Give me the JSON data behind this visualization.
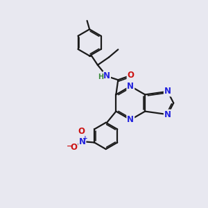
{
  "bg_color": "#e8e8f0",
  "bond_color": "#1a1a1a",
  "bond_width": 1.6,
  "atom_colors": {
    "N": "#2222dd",
    "O": "#cc1111",
    "H": "#3a8a3a",
    "C": "#1a1a1a"
  },
  "font_size_atom": 8.5,
  "font_size_small": 7.0,
  "font_size_plus": 6.5
}
